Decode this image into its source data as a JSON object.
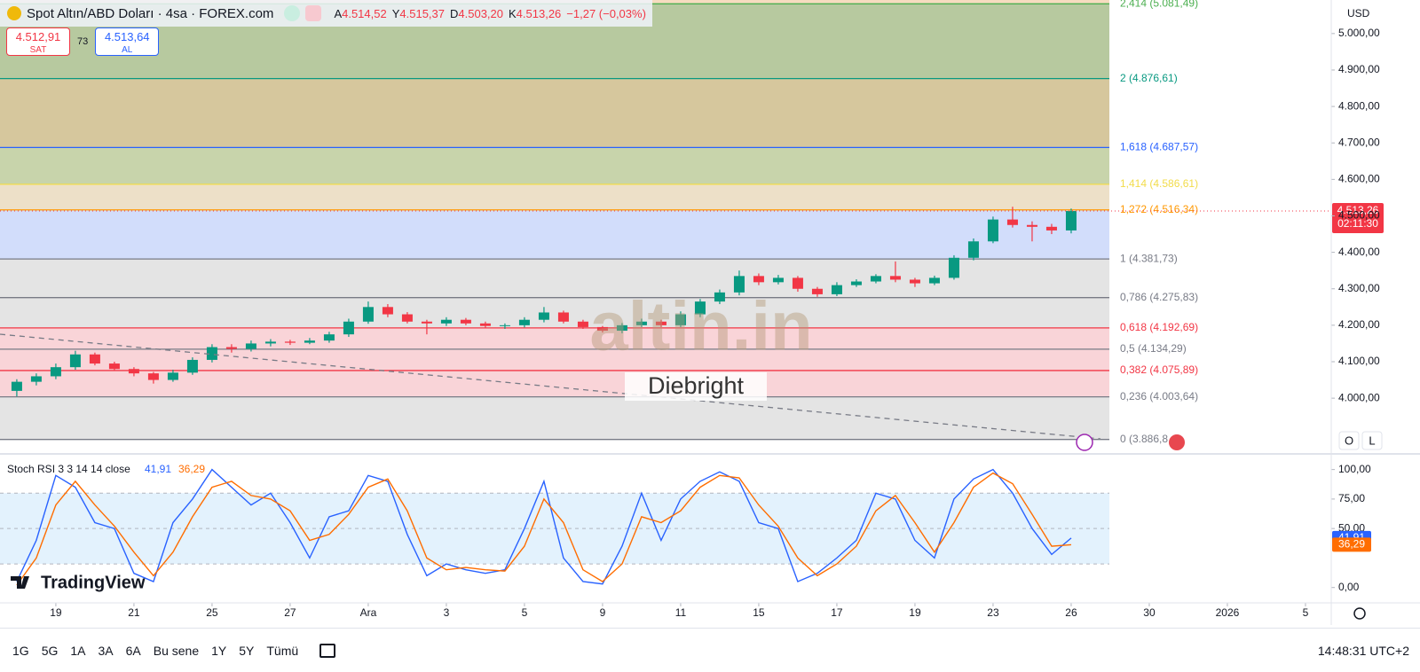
{
  "header": {
    "symbol": "Spot Altın/ABD Doları · 4sa · FOREX.com",
    "ohlc": [
      {
        "key": "A",
        "value": "4.514,52"
      },
      {
        "key": "Y",
        "value": "4.515,37"
      },
      {
        "key": "D",
        "value": "4.503,20"
      },
      {
        "key": "K",
        "value": "4.513,26"
      }
    ],
    "change": "−1,27 (−0,03%)",
    "sell_price": "4.512,91",
    "sell_label": "SAT",
    "spread": "73",
    "buy_price": "4.513,64",
    "buy_label": "AL"
  },
  "currency": "USD",
  "scale_buttons": [
    "O",
    "L"
  ],
  "watermark": {
    "brand": "altin.in",
    "author": "Diebright"
  },
  "logo": "TradingView",
  "ranges": [
    "1G",
    "5G",
    "1A",
    "3A",
    "6A",
    "Bu sene",
    "1Y",
    "5Y",
    "Tümü"
  ],
  "clock": "14:48:31 UTC+2",
  "chart_data": [
    {
      "type": "candlestick",
      "up_color": "#089981",
      "down_color": "#f23645",
      "open": [
        4020,
        4045,
        4060,
        4085,
        4120,
        4095,
        4080,
        4068,
        4050,
        4070,
        4105,
        4140,
        4135,
        4150,
        4155,
        4152,
        4158,
        4175,
        4210,
        4250,
        4230,
        4210,
        4205,
        4215,
        4205,
        4198,
        4200,
        4215,
        4235,
        4210,
        4195,
        4185,
        4200,
        4210,
        4200,
        4230,
        4265,
        4290,
        4335,
        4318,
        4330,
        4300,
        4285,
        4310,
        4320,
        4335,
        4325,
        4315,
        4330,
        4385,
        4430,
        4490,
        4475,
        4470,
        4460
      ],
      "high": [
        4052,
        4068,
        4095,
        4130,
        4125,
        4100,
        4085,
        4072,
        4078,
        4112,
        4148,
        4148,
        4158,
        4162,
        4160,
        4165,
        4182,
        4218,
        4265,
        4258,
        4236,
        4215,
        4222,
        4220,
        4210,
        4205,
        4222,
        4250,
        4240,
        4215,
        4198,
        4206,
        4218,
        4215,
        4238,
        4272,
        4298,
        4350,
        4342,
        4338,
        4335,
        4305,
        4318,
        4326,
        4340,
        4375,
        4330,
        4336,
        4392,
        4438,
        4498,
        4525,
        4485,
        4478,
        4520
      ],
      "low": [
        4005,
        4035,
        4052,
        4078,
        4090,
        4075,
        4060,
        4040,
        4045,
        4064,
        4098,
        4125,
        4128,
        4142,
        4146,
        4148,
        4152,
        4168,
        4204,
        4222,
        4205,
        4175,
        4198,
        4200,
        4192,
        4190,
        4194,
        4208,
        4205,
        4190,
        4180,
        4178,
        4195,
        4195,
        4195,
        4222,
        4258,
        4282,
        4310,
        4312,
        4292,
        4278,
        4280,
        4305,
        4315,
        4318,
        4305,
        4310,
        4325,
        4378,
        4425,
        4468,
        4430,
        4450,
        4452
      ],
      "close": [
        4045,
        4060,
        4085,
        4120,
        4095,
        4080,
        4068,
        4050,
        4070,
        4105,
        4140,
        4135,
        4150,
        4155,
        4152,
        4158,
        4175,
        4210,
        4250,
        4230,
        4210,
        4205,
        4215,
        4205,
        4198,
        4200,
        4215,
        4235,
        4210,
        4195,
        4185,
        4200,
        4210,
        4200,
        4230,
        4265,
        4290,
        4335,
        4318,
        4330,
        4300,
        4285,
        4310,
        4320,
        4335,
        4325,
        4315,
        4330,
        4385,
        4430,
        4490,
        4475,
        4470,
        4460,
        4513.26
      ],
      "last_label": "4.513,26",
      "countdown": "02:11:30",
      "ylim": [
        3852,
        5092
      ],
      "yticks": [
        {
          "value": 4000,
          "label": "4.000,00"
        },
        {
          "value": 4100,
          "label": "4.100,00"
        },
        {
          "value": 4200,
          "label": "4.200,00"
        },
        {
          "value": 4300,
          "label": "4.300,00"
        },
        {
          "value": 4400,
          "label": "4.400,00"
        },
        {
          "value": 4500,
          "label": "4.500,00"
        },
        {
          "value": 4600,
          "label": "4.600,00"
        },
        {
          "value": 4700,
          "label": "4.700,00"
        },
        {
          "value": 4800,
          "label": "4.800,00"
        },
        {
          "value": 4900,
          "label": "4.900,00"
        },
        {
          "value": 5000,
          "label": "5.000,00"
        }
      ],
      "xlim": [
        -0.86,
        67.32
      ],
      "xticks": [
        {
          "value": 2,
          "label": "19"
        },
        {
          "value": 6,
          "label": "21"
        },
        {
          "value": 10,
          "label": "25"
        },
        {
          "value": 14,
          "label": "27"
        },
        {
          "value": 18,
          "label": "Ara"
        },
        {
          "value": 22,
          "label": "3"
        },
        {
          "value": 26,
          "label": "5"
        },
        {
          "value": 30,
          "label": "9"
        },
        {
          "value": 34,
          "label": "11"
        },
        {
          "value": 38,
          "label": "15"
        },
        {
          "value": 42,
          "label": "17"
        },
        {
          "value": 46,
          "label": "19"
        },
        {
          "value": 50,
          "label": "23"
        },
        {
          "value": 54,
          "label": "26"
        },
        {
          "value": 58,
          "label": "30"
        },
        {
          "value": 62,
          "label": "2026"
        },
        {
          "value": 66,
          "label": "5"
        }
      ],
      "fib_levels": [
        {
          "label": "2,414 (5.081,49)",
          "value": 5081.49,
          "color": "#4caf50",
          "fill": "#b7c99f"
        },
        {
          "label": "2 (4.876,61)",
          "value": 4876.61,
          "color": "#089981",
          "fill": "#d6c79d"
        },
        {
          "label": "1,618 (4.687,57)",
          "value": 4687.57,
          "color": "#2962ff",
          "fill": "#c8d4ab"
        },
        {
          "label": "1,414 (4.586,61)",
          "value": 4586.61,
          "color": "#f2dc4a",
          "fill": "#ede0c8"
        },
        {
          "label": "1,272 (4.516,34)",
          "value": 4516.34,
          "color": "#ff9800",
          "fill": "#d2ddfb"
        },
        {
          "label": "1 (4.381,73)",
          "value": 4381.73,
          "color": "#787b86",
          "fill": "#e4e4e4"
        },
        {
          "label": "0,786 (4.275,83)",
          "value": 4275.83,
          "color": "#787b86",
          "fill": "#e4e4e4"
        },
        {
          "label": "0,618 (4.192,69)",
          "value": 4192.69,
          "color": "#f23645",
          "fill": "#f9d4d8"
        },
        {
          "label": "0,5 (4.134,29)",
          "value": 4134.29,
          "color": "#787b86",
          "fill": "#f9d4d8"
        },
        {
          "label": "0,382 (4.075,89)",
          "value": 4075.89,
          "color": "#f23645",
          "fill": "#f9d4d8"
        },
        {
          "label": "0,236 (4.003,64)",
          "value": 4003.64,
          "color": "#787b86",
          "fill": "#e4e4e4"
        },
        {
          "label": "0 (3.886,8",
          "value": 3886.8,
          "color": "#787b86"
        }
      ]
    },
    {
      "type": "line",
      "title": "Stoch RSI 3 3 14 14 close",
      "ylim": [
        -13,
        111
      ],
      "yticks": [
        {
          "value": 0,
          "label": "0,00"
        },
        {
          "value": 50,
          "label": "50,00"
        },
        {
          "value": 75,
          "label": "75,00"
        },
        {
          "value": 100,
          "label": "100,00"
        }
      ],
      "levels": [
        80,
        50,
        20
      ],
      "band_fill": "#e3f2fd",
      "series": [
        {
          "name": "K",
          "color": "#2962ff",
          "last_label": "41,91",
          "values": [
            5,
            40,
            95,
            85,
            55,
            50,
            12,
            5,
            55,
            75,
            100,
            85,
            70,
            80,
            55,
            25,
            60,
            65,
            95,
            90,
            45,
            10,
            20,
            15,
            12,
            15,
            50,
            90,
            25,
            5,
            3,
            35,
            80,
            40,
            75,
            90,
            98,
            90,
            55,
            50,
            5,
            12,
            25,
            40,
            80,
            75,
            40,
            25,
            75,
            92,
            100,
            80,
            50,
            28,
            41.91
          ]
        },
        {
          "name": "D",
          "color": "#ff6d00",
          "last_label": "36,29",
          "values": [
            2,
            25,
            70,
            90,
            70,
            52,
            30,
            10,
            30,
            60,
            85,
            90,
            78,
            75,
            65,
            40,
            45,
            62,
            85,
            92,
            65,
            25,
            15,
            17,
            15,
            14,
            35,
            75,
            55,
            15,
            5,
            20,
            60,
            55,
            65,
            85,
            95,
            93,
            70,
            52,
            25,
            10,
            20,
            35,
            65,
            78,
            55,
            30,
            55,
            85,
            97,
            88,
            62,
            35,
            36.29
          ]
        }
      ]
    }
  ]
}
